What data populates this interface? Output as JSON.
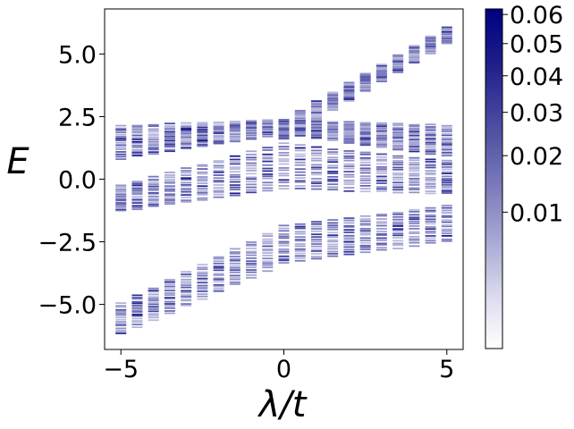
{
  "chart_data": {
    "type": "scatter",
    "title": "",
    "xlabel": "λ/t",
    "ylabel": "E",
    "xlim": [
      -5.5,
      5.5
    ],
    "ylim": [
      -6.8,
      6.8
    ],
    "x_ticks": [
      -5,
      0,
      5
    ],
    "x_tick_labels": [
      "−5",
      "0",
      "5"
    ],
    "y_ticks": [
      -5.0,
      -2.5,
      0.0,
      2.5,
      5.0
    ],
    "y_tick_labels": [
      "−5.0",
      "−2.5",
      "0.0",
      "2.5",
      "5.0"
    ],
    "grid": false,
    "colorbar": {
      "ticks": [
        0.01,
        0.02,
        0.03,
        0.04,
        0.05,
        0.06
      ],
      "tick_labels": [
        "0.01",
        "0.02",
        "0.03",
        "0.04",
        "0.05",
        "0.06"
      ],
      "min": 0.0,
      "max": 0.062,
      "scale": "power",
      "color_low": "#ffffff",
      "color_high": "#00007f"
    },
    "lambda_values": [
      -5.0,
      -4.5,
      -4.0,
      -3.5,
      -3.0,
      -2.5,
      -2.0,
      -1.5,
      -1.0,
      -0.5,
      0.0,
      0.5,
      1.0,
      1.5,
      2.0,
      2.5,
      3.0,
      3.5,
      4.0,
      4.5,
      5.0
    ],
    "bands": [
      {
        "band": "upper flat band",
        "E_range_at_lambda": {
          "-5": [
            0.8,
            2.2
          ],
          "0": [
            1.8,
            2.4
          ],
          "5": [
            0.9,
            2.2
          ]
        }
      },
      {
        "band": "middle band",
        "E_range_at_lambda": {
          "-5": [
            -1.3,
            -0.2
          ],
          "0": [
            -0.4,
            1.5
          ],
          "5": [
            -0.6,
            0.8
          ]
        }
      },
      {
        "band": "lower band",
        "E_range_at_lambda": {
          "-5": [
            -6.2,
            -4.9
          ],
          "0": [
            -3.4,
            -1.8
          ],
          "5": [
            -2.5,
            -1.0
          ]
        }
      },
      {
        "band": "rising band",
        "E_range_at_lambda": {
          "0": [
            1.6,
            2.4
          ],
          "5": [
            5.4,
            6.1
          ]
        }
      }
    ]
  }
}
